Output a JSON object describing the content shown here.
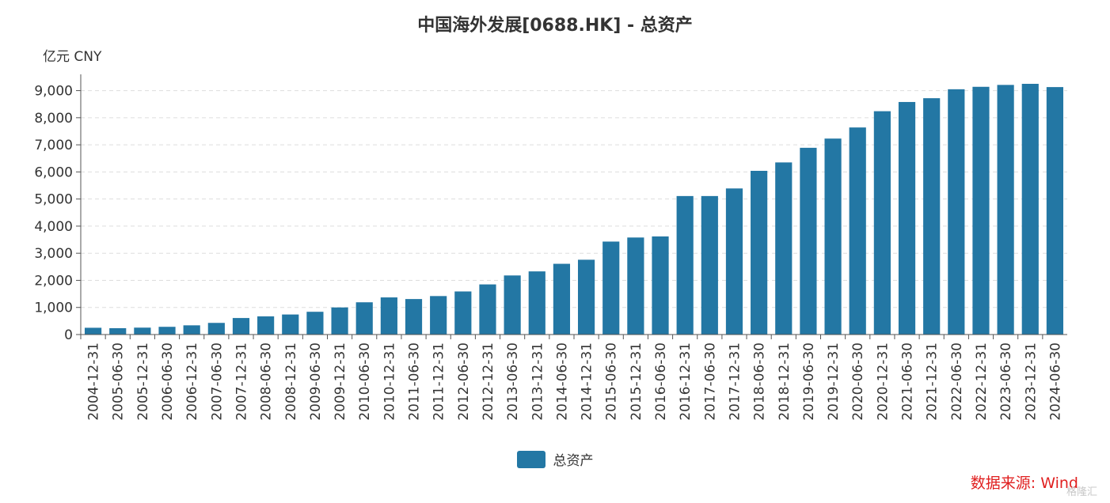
{
  "chart_data": {
    "type": "bar",
    "title": "中国海外发展[0688.HK] - 总资产",
    "unit_label": "亿元  CNY",
    "xlabel": "",
    "ylabel": "",
    "ylim": [
      0,
      9600
    ],
    "yticks": [
      0,
      1000,
      2000,
      3000,
      4000,
      5000,
      6000,
      7000,
      8000,
      9000
    ],
    "ytick_labels": [
      "0",
      "1,000",
      "2,000",
      "3,000",
      "4,000",
      "5,000",
      "6,000",
      "7,000",
      "8,000",
      "9,000"
    ],
    "grid": true,
    "legend_position": "bottom-center",
    "categories": [
      "2004-12-31",
      "2005-06-30",
      "2005-12-31",
      "2006-06-30",
      "2006-12-31",
      "2007-06-30",
      "2007-12-31",
      "2008-06-30",
      "2008-12-31",
      "2009-06-30",
      "2009-12-31",
      "2010-06-30",
      "2010-12-31",
      "2011-06-30",
      "2011-12-31",
      "2012-06-30",
      "2012-12-31",
      "2013-06-30",
      "2013-12-31",
      "2014-06-30",
      "2014-12-31",
      "2015-06-30",
      "2015-12-31",
      "2016-06-30",
      "2016-12-31",
      "2017-06-30",
      "2017-12-31",
      "2018-06-30",
      "2018-12-31",
      "2019-06-30",
      "2019-12-31",
      "2020-06-30",
      "2020-12-31",
      "2021-06-30",
      "2021-12-31",
      "2022-06-30",
      "2022-12-31",
      "2023-06-30",
      "2023-12-31",
      "2024-06-30"
    ],
    "series": [
      {
        "name": "总资产",
        "color": "#2377a4",
        "values": [
          250,
          235,
          255,
          285,
          340,
          430,
          610,
          670,
          740,
          840,
          1000,
          1190,
          1370,
          1310,
          1420,
          1590,
          1850,
          2180,
          2330,
          2610,
          2760,
          3430,
          3580,
          3620,
          5110,
          5110,
          5390,
          6040,
          6350,
          6890,
          7230,
          7640,
          8240,
          8580,
          8720,
          9050,
          9140,
          9210,
          9250,
          9130
        ]
      }
    ]
  },
  "source_note": "数据来源: Wind",
  "watermark": "格隆汇",
  "colors": {
    "bar": "#2377a4",
    "grid": "#dddddd",
    "axis": "#555555",
    "source": "#e02020"
  }
}
